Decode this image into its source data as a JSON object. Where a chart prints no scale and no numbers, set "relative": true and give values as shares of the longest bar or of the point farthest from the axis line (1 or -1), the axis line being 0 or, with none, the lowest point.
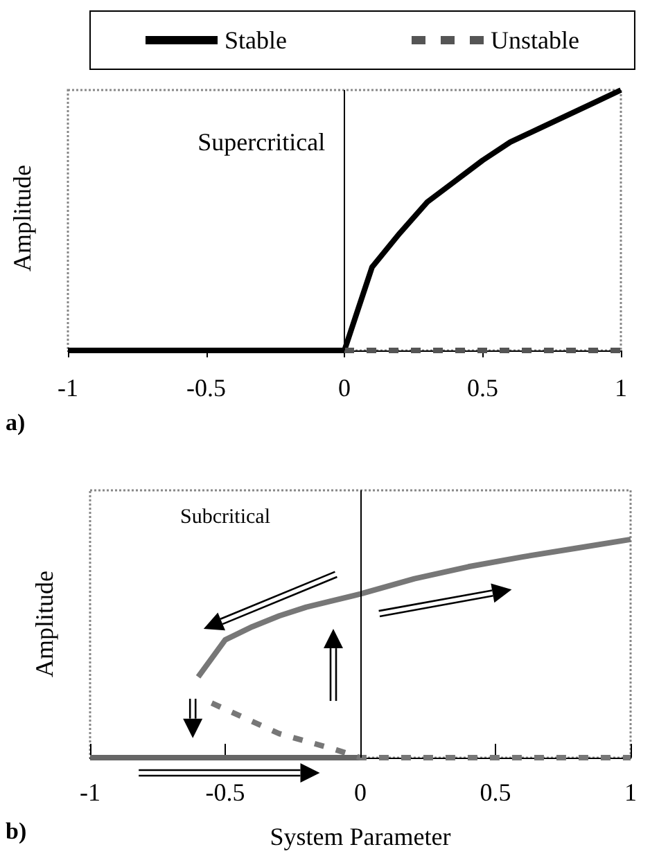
{
  "chart_data": [
    {
      "type": "line",
      "ylabel": "Amplitude",
      "relative": true,
      "xlim": [
        -1,
        1
      ],
      "xticks": [
        -1,
        -0.5,
        0,
        0.5,
        1
      ],
      "grid": false,
      "legend": "top",
      "marker": "none",
      "annotations": [
        "Supercritical",
        "a)"
      ],
      "ref_lines": [
        {
          "axis": "x",
          "value": 0,
          "color": "#000000"
        }
      ],
      "series": [
        {
          "name": "Stable",
          "color": "#000000",
          "line_style": "solid",
          "x": [
            -1,
            0,
            0.1,
            0.2,
            0.3,
            0.4,
            0.5,
            0.6,
            0.7,
            0.8,
            0.9,
            1
          ],
          "values": [
            0,
            0,
            0.32,
            0.45,
            0.57,
            0.65,
            0.73,
            0.8,
            0.85,
            0.9,
            0.95,
            1
          ]
        },
        {
          "name": "Unstable",
          "color": "#555555",
          "line_style": "dashed",
          "x": [
            0,
            1
          ],
          "values": [
            0,
            0
          ]
        }
      ]
    },
    {
      "type": "line",
      "xlabel": "System Parameter",
      "ylabel": "Amplitude",
      "relative": true,
      "xlim": [
        -1,
        1
      ],
      "xticks": [
        -1,
        -0.5,
        0,
        0.5,
        1
      ],
      "grid": false,
      "legend": false,
      "marker": "none",
      "annotations": [
        "Subcritical",
        "b)"
      ],
      "ref_lines": [
        {
          "axis": "x",
          "value": 0,
          "color": "#000000"
        }
      ],
      "series": [
        {
          "color": "#666666",
          "line_style": "solid",
          "x": [
            -1,
            0
          ],
          "values": [
            0,
            0
          ]
        },
        {
          "color": "#777777",
          "line_style": "solid",
          "x": [
            -0.6,
            -0.5,
            -0.4,
            -0.3,
            -0.2,
            -0.1,
            0,
            0.2,
            0.4,
            0.6,
            0.8,
            1
          ],
          "values": [
            0.37,
            0.54,
            0.6,
            0.65,
            0.69,
            0.72,
            0.75,
            0.82,
            0.875,
            0.92,
            0.96,
            1
          ]
        },
        {
          "color": "#777777",
          "line_style": "dashed",
          "x": [
            -0.55,
            -0.3,
            -0.1,
            0,
            1
          ],
          "values": [
            0.25,
            0.11,
            0.04,
            0,
            0
          ]
        }
      ]
    }
  ]
}
